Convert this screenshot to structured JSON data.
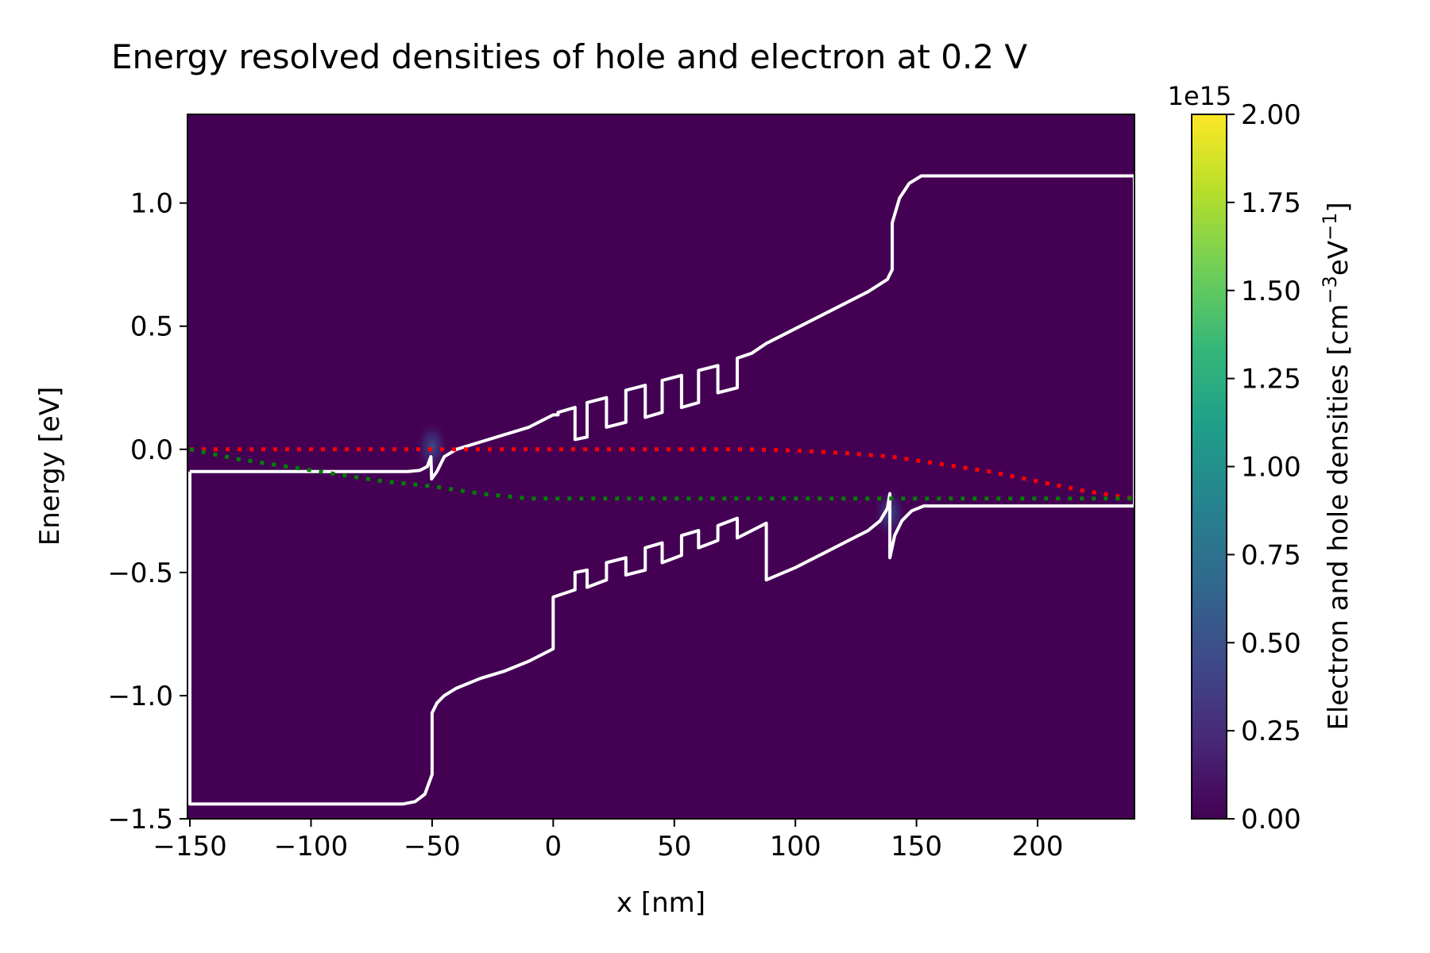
{
  "chart_data": {
    "type": "heatmap",
    "title": "Energy resolved densities of hole and electron at 0.2 V",
    "xlabel": "x [nm]",
    "ylabel": "Energy [eV]",
    "xlim": [
      -151,
      240
    ],
    "ylim": [
      -1.5,
      1.36
    ],
    "xticks": [
      {
        "value": -150,
        "label": "−150"
      },
      {
        "value": -100,
        "label": "−100"
      },
      {
        "value": -50,
        "label": "−50"
      },
      {
        "value": 0,
        "label": "0"
      },
      {
        "value": 50,
        "label": "50"
      },
      {
        "value": 100,
        "label": "100"
      },
      {
        "value": 150,
        "label": "150"
      },
      {
        "value": 200,
        "label": "200"
      }
    ],
    "yticks": [
      {
        "value": 1.0,
        "label": "1.0"
      },
      {
        "value": 0.5,
        "label": "0.5"
      },
      {
        "value": 0.0,
        "label": "0.0"
      },
      {
        "value": -0.5,
        "label": "−0.5"
      },
      {
        "value": -1.0,
        "label": "−1.0"
      },
      {
        "value": -1.5,
        "label": "−1.5"
      }
    ],
    "background_color": "#440154",
    "colorbar": {
      "label_parts": [
        "Electron and hole densities [cm",
        "−3",
        "eV",
        "−1",
        "]"
      ],
      "range": [
        0,
        2.0
      ],
      "offset_label": "1e15",
      "ticks": [
        {
          "value": 0.0,
          "label": "0.00"
        },
        {
          "value": 0.25,
          "label": "0.25"
        },
        {
          "value": 0.5,
          "label": "0.50"
        },
        {
          "value": 0.75,
          "label": "0.75"
        },
        {
          "value": 1.0,
          "label": "1.00"
        },
        {
          "value": 1.25,
          "label": "1.25"
        },
        {
          "value": 1.5,
          "label": "1.50"
        },
        {
          "value": 1.75,
          "label": "1.75"
        },
        {
          "value": 2.0,
          "label": "2.00"
        }
      ],
      "colormap": [
        "#440154",
        "#482878",
        "#3e4989",
        "#31688e",
        "#26828e",
        "#1f9e89",
        "#35b779",
        "#6ece58",
        "#b5de2b",
        "#fde725"
      ]
    },
    "series": [
      {
        "key": "conduction_band",
        "color": "#ffffff",
        "style": "solid",
        "points": [
          [
            -150,
            -0.09
          ],
          [
            -60,
            -0.09
          ],
          [
            -55,
            -0.085
          ],
          [
            -52,
            -0.07
          ],
          [
            -50.5,
            -0.03
          ],
          [
            -50.2,
            -0.12
          ],
          [
            -48,
            -0.09
          ],
          [
            -45,
            -0.03
          ],
          [
            -40,
            0.0
          ],
          [
            -30,
            0.03
          ],
          [
            -20,
            0.06
          ],
          [
            -10,
            0.09
          ],
          [
            0,
            0.14
          ],
          [
            0,
            0.14
          ],
          [
            2,
            0.14
          ],
          [
            2,
            0.15
          ],
          [
            9,
            0.17
          ],
          [
            9,
            0.04
          ],
          [
            14,
            0.05
          ],
          [
            14,
            0.19
          ],
          [
            22,
            0.21
          ],
          [
            22,
            0.09
          ],
          [
            30,
            0.11
          ],
          [
            30,
            0.24
          ],
          [
            38,
            0.26
          ],
          [
            38,
            0.13
          ],
          [
            45,
            0.15
          ],
          [
            45,
            0.28
          ],
          [
            53,
            0.3
          ],
          [
            53,
            0.17
          ],
          [
            60,
            0.19
          ],
          [
            60,
            0.32
          ],
          [
            68,
            0.34
          ],
          [
            68,
            0.23
          ],
          [
            76,
            0.25
          ],
          [
            76,
            0.37
          ],
          [
            82,
            0.39
          ],
          [
            88,
            0.43
          ],
          [
            90,
            0.44
          ],
          [
            100,
            0.49
          ],
          [
            110,
            0.54
          ],
          [
            120,
            0.59
          ],
          [
            130,
            0.64
          ],
          [
            138,
            0.69
          ],
          [
            140,
            0.73
          ],
          [
            140,
            0.8
          ],
          [
            140,
            0.92
          ],
          [
            143,
            1.02
          ],
          [
            147,
            1.08
          ],
          [
            152,
            1.11
          ],
          [
            240,
            1.11
          ],
          [
            240,
            -0.23
          ]
        ]
      },
      {
        "key": "valence_band",
        "color": "#ffffff",
        "style": "solid",
        "points": [
          [
            -150,
            -0.09
          ],
          [
            -150,
            -1.44
          ],
          [
            -62,
            -1.44
          ],
          [
            -57,
            -1.43
          ],
          [
            -53,
            -1.4
          ],
          [
            -50,
            -1.32
          ],
          [
            -50,
            -1.07
          ],
          [
            -48,
            -1.03
          ],
          [
            -45,
            -1.0
          ],
          [
            -40,
            -0.97
          ],
          [
            -30,
            -0.93
          ],
          [
            -20,
            -0.9
          ],
          [
            -10,
            -0.86
          ],
          [
            0,
            -0.81
          ],
          [
            0,
            -0.6
          ],
          [
            9,
            -0.57
          ],
          [
            9,
            -0.5
          ],
          [
            14,
            -0.49
          ],
          [
            14,
            -0.56
          ],
          [
            22,
            -0.53
          ],
          [
            22,
            -0.46
          ],
          [
            30,
            -0.44
          ],
          [
            30,
            -0.51
          ],
          [
            38,
            -0.49
          ],
          [
            38,
            -0.4
          ],
          [
            45,
            -0.38
          ],
          [
            45,
            -0.46
          ],
          [
            53,
            -0.43
          ],
          [
            53,
            -0.35
          ],
          [
            60,
            -0.33
          ],
          [
            60,
            -0.4
          ],
          [
            68,
            -0.37
          ],
          [
            68,
            -0.31
          ],
          [
            76,
            -0.28
          ],
          [
            76,
            -0.36
          ],
          [
            82,
            -0.33
          ],
          [
            88,
            -0.3
          ],
          [
            88,
            -0.53
          ],
          [
            100,
            -0.48
          ],
          [
            110,
            -0.43
          ],
          [
            120,
            -0.38
          ],
          [
            130,
            -0.33
          ],
          [
            135,
            -0.29
          ],
          [
            138,
            -0.24
          ],
          [
            139,
            -0.18
          ],
          [
            139,
            -0.44
          ],
          [
            141,
            -0.35
          ],
          [
            144,
            -0.29
          ],
          [
            148,
            -0.25
          ],
          [
            153,
            -0.23
          ],
          [
            240,
            -0.23
          ]
        ]
      },
      {
        "key": "electron_quasi_fermi_level",
        "color": "#ff0000",
        "style": "dotted",
        "points": [
          [
            -150,
            0.0
          ],
          [
            -100,
            0.0
          ],
          [
            -50,
            0.0
          ],
          [
            0,
            0.0
          ],
          [
            50,
            0.0
          ],
          [
            80,
            0.0
          ],
          [
            100,
            -0.005
          ],
          [
            120,
            -0.015
          ],
          [
            140,
            -0.03
          ],
          [
            160,
            -0.06
          ],
          [
            180,
            -0.09
          ],
          [
            200,
            -0.13
          ],
          [
            220,
            -0.17
          ],
          [
            240,
            -0.2
          ]
        ]
      },
      {
        "key": "hole_quasi_fermi_level",
        "color": "#008000",
        "style": "dotted",
        "points": [
          [
            -150,
            0.0
          ],
          [
            -130,
            -0.04
          ],
          [
            -110,
            -0.07
          ],
          [
            -90,
            -0.1
          ],
          [
            -70,
            -0.13
          ],
          [
            -50,
            -0.15
          ],
          [
            -30,
            -0.18
          ],
          [
            -10,
            -0.2
          ],
          [
            0,
            -0.2
          ],
          [
            50,
            -0.2
          ],
          [
            100,
            -0.2
          ],
          [
            150,
            -0.2
          ],
          [
            200,
            -0.2
          ],
          [
            240,
            -0.2
          ]
        ]
      }
    ],
    "density_spots": [
      {
        "x": -50,
        "e": 0.01,
        "density": 0.5
      },
      {
        "x": 139,
        "e": -0.26,
        "density": 0.8
      }
    ]
  }
}
